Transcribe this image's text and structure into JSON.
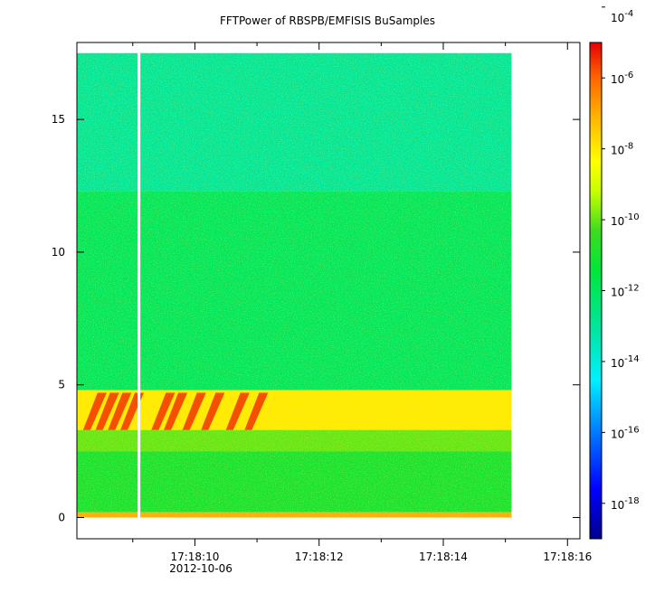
{
  "chart_data": {
    "type": "heatmap",
    "title": "FFTPower of RBSPB/EMFISIS  BuSamples",
    "xlabel": "",
    "ylabel": "",
    "x_axis": {
      "range": [
        "17:18:08.1",
        "17:18:16.2"
      ],
      "major_ticks": [
        "17:18:10",
        "17:18:12",
        "17:18:14",
        "17:18:16"
      ],
      "minor_ticks": [
        "17:18:09",
        "17:18:11",
        "17:18:13",
        "17:18:15"
      ],
      "date_label": "2012-10-06"
    },
    "y_axis": {
      "range": [
        -0.8,
        17.9
      ],
      "ticks": [
        0,
        5,
        10,
        15
      ]
    },
    "data_extent": {
      "x": [
        "17:18:08.1",
        "17:18:15.1"
      ],
      "y": [
        0,
        17.5
      ]
    },
    "data_gap_at": "17:18:09.1",
    "colorbar": {
      "scale": "log",
      "range": [
        1e-18,
        0.0001
      ],
      "ticks": [
        {
          "base": "10",
          "exp": "-4"
        },
        {
          "base": "10",
          "exp": "-6"
        },
        {
          "base": "10",
          "exp": "-8"
        },
        {
          "base": "10",
          "exp": "-10"
        },
        {
          "base": "10",
          "exp": "-12"
        },
        {
          "base": "10",
          "exp": "-14"
        },
        {
          "base": "10",
          "exp": "-16"
        },
        {
          "base": "10",
          "exp": "-18"
        }
      ]
    },
    "bands": [
      {
        "y": [
          12.3,
          17.5
        ],
        "level": 1e-12
      },
      {
        "y": [
          4.8,
          12.3
        ],
        "level": 1e-11
      },
      {
        "y": [
          3.3,
          4.8
        ],
        "level": 1e-07
      },
      {
        "y": [
          2.5,
          3.3
        ],
        "level": 1e-09
      },
      {
        "y": [
          0.2,
          2.5
        ],
        "level": 1e-10
      },
      {
        "y": [
          0,
          0.2
        ],
        "level": 1e-06
      }
    ],
    "colors": {
      "high": "#e8281e",
      "mid_high": "#ffd21e",
      "mid": "#22d22a",
      "low": "#00e0ff",
      "lowest": "#000099"
    }
  }
}
